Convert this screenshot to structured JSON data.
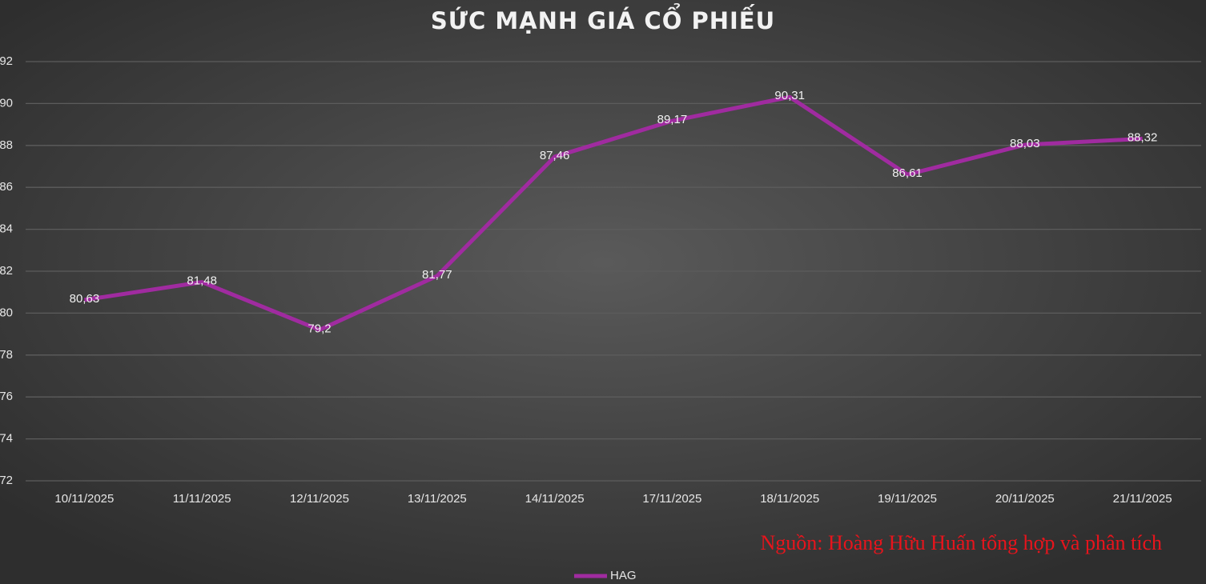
{
  "chart_data": {
    "type": "line",
    "title": "SỨC MẠNH GIÁ CỔ PHIẾU",
    "categories": [
      "10/11/2025",
      "11/11/2025",
      "12/11/2025",
      "13/11/2025",
      "14/11/2025",
      "17/11/2025",
      "18/11/2025",
      "19/11/2025",
      "20/11/2025",
      "21/11/2025"
    ],
    "series": [
      {
        "name": "HAG",
        "color": "#a02ba0",
        "values": [
          80.63,
          81.48,
          79.2,
          81.77,
          87.46,
          89.17,
          90.31,
          86.61,
          88.03,
          88.32
        ],
        "value_labels": [
          "80,63",
          "81,48",
          "79,2",
          "81,77",
          "87,46",
          "89,17",
          "90,31",
          "86,61",
          "88,03",
          "88,32"
        ]
      }
    ],
    "ylim": [
      72,
      92
    ],
    "yticks": [
      72,
      74,
      76,
      78,
      80,
      82,
      84,
      86,
      88,
      90,
      92
    ],
    "grid": true,
    "legend": "bottom",
    "annotation": "Nguồn: Hoàng Hữu Huấn tổng hợp và phân tích"
  }
}
